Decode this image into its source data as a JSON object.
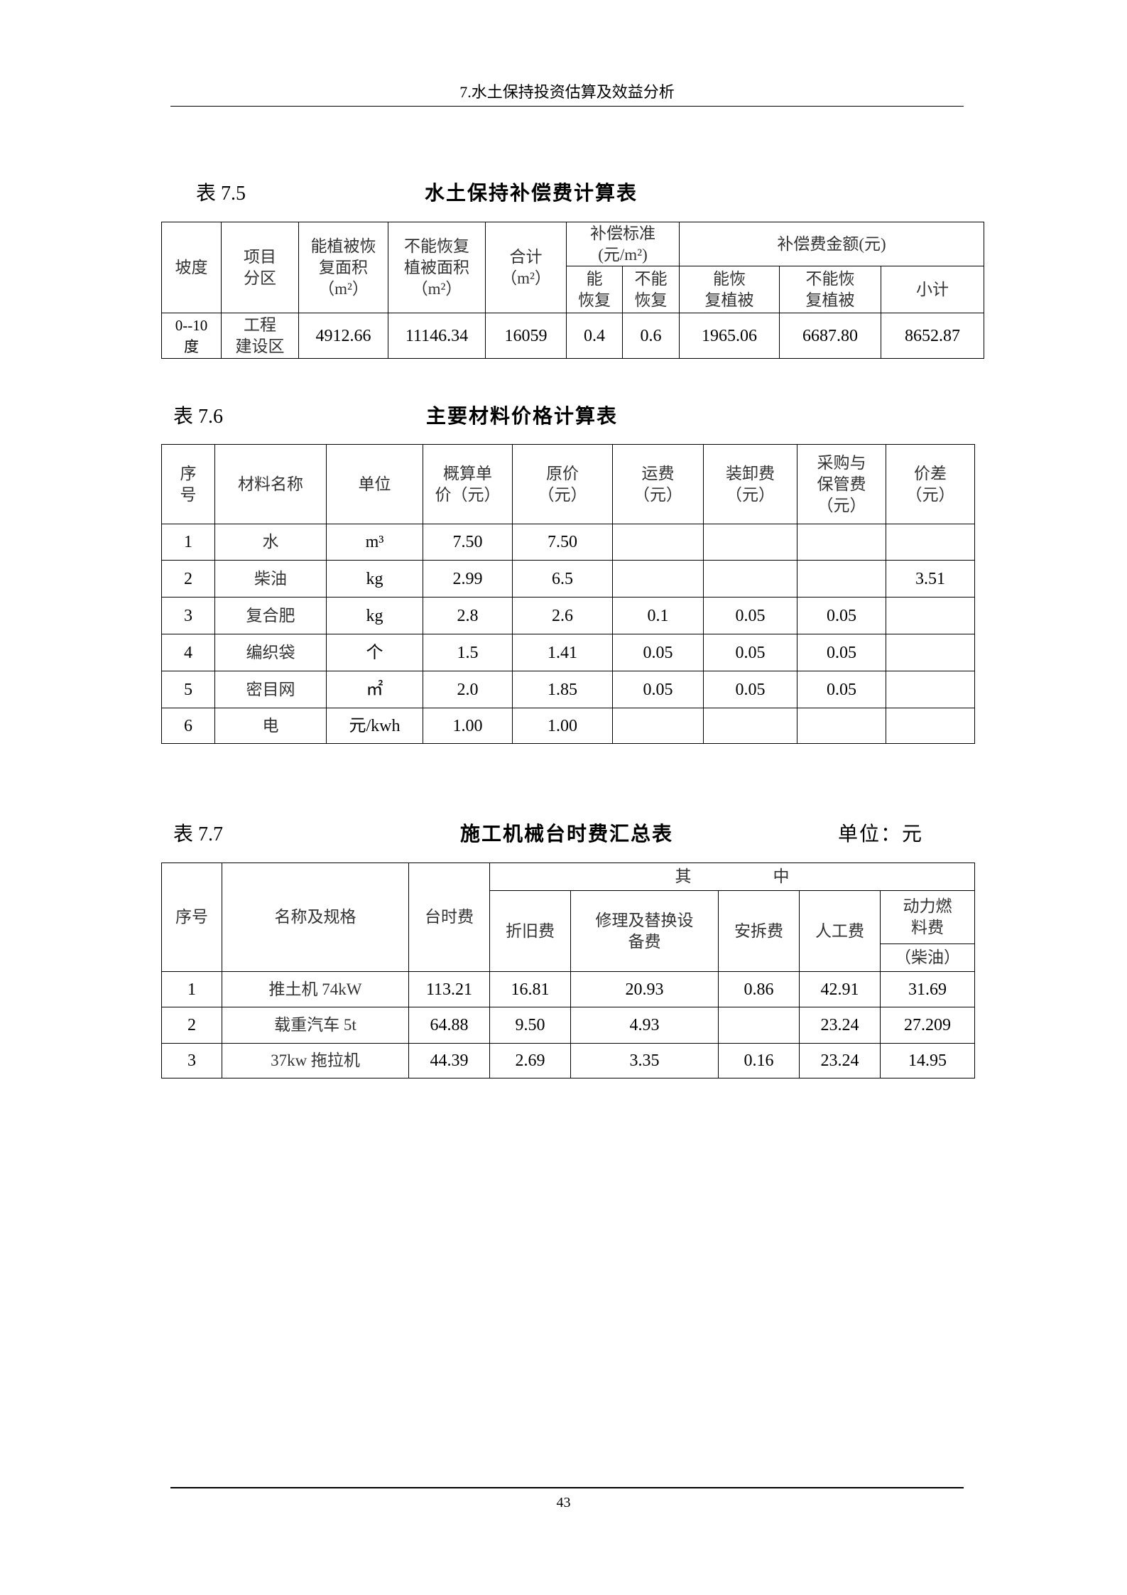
{
  "header": "7.水土保持投资估算及效益分析",
  "t75": {
    "label": "表 7.5",
    "title": "水土保持补偿费计算表",
    "h": {
      "slope": "坡度",
      "zone": "项目\n分区",
      "area_rec": "能植被恢\n复面积\n（m²）",
      "area_non": "不能恢复\n植被面积\n（m²）",
      "total": "合计\n（m²）",
      "std": "补偿标准(元/m²)",
      "amount": "补偿费金额(元)",
      "std_rec": "能\n恢复",
      "std_non": "不能\n恢复",
      "amt_rec": "能恢\n复植被",
      "amt_non": "不能恢\n复植被",
      "subtotal": "小计"
    },
    "row": [
      "0--10\n度",
      "工程\n建设区",
      "4912.66",
      "11146.34",
      "16059",
      "0.4",
      "0.6",
      "1965.06",
      "6687.80",
      "8652.87"
    ]
  },
  "t76": {
    "label": "表 7.6",
    "title": "主要材料价格计算表",
    "headers": [
      "序\n号",
      "材料名称",
      "单位",
      "概算单\n价（元）",
      "原价\n（元）",
      "运费\n（元）",
      "装卸费\n（元）",
      "采购与\n保管费\n（元）",
      "价差\n（元）"
    ],
    "rows": [
      [
        "1",
        "水",
        "m³",
        "7.50",
        "7.50",
        "",
        "",
        "",
        ""
      ],
      [
        "2",
        "柴油",
        "kg",
        "2.99",
        "6.5",
        "",
        "",
        "",
        "3.51"
      ],
      [
        "3",
        "复合肥",
        "kg",
        "2.8",
        "2.6",
        "0.1",
        "0.05",
        "0.05",
        ""
      ],
      [
        "4",
        "编织袋",
        "个",
        "1.5",
        "1.41",
        "0.05",
        "0.05",
        "0.05",
        ""
      ],
      [
        "5",
        "密目网",
        "㎡",
        "2.0",
        "1.85",
        "0.05",
        "0.05",
        "0.05",
        ""
      ],
      [
        "6",
        "电",
        "元/kwh",
        "1.00",
        "1.00",
        "",
        "",
        "",
        ""
      ]
    ]
  },
  "t77": {
    "label": "表 7.7",
    "title": "施工机械台时费汇总表",
    "unit": "单位：元",
    "h": {
      "no": "序号",
      "name": "名称及规格",
      "hourly": "台时费",
      "among": "其　　　　　中",
      "dep": "折旧费",
      "repair": "修理及替换设\n备费",
      "install": "安拆费",
      "labor": "人工费",
      "fuel": "动力燃\n料费",
      "fuel_type": "（柴油）"
    },
    "rows": [
      [
        "1",
        "推土机 74kW",
        "113.21",
        "16.81",
        "20.93",
        "0.86",
        "42.91",
        "31.69"
      ],
      [
        "2",
        "载重汽车 5t",
        "64.88",
        "9.50",
        "4.93",
        "",
        "23.24",
        "27.209"
      ],
      [
        "3",
        "37kw 拖拉机",
        "44.39",
        "2.69",
        "3.35",
        "0.16",
        "23.24",
        "14.95"
      ]
    ]
  },
  "page_number": "43"
}
